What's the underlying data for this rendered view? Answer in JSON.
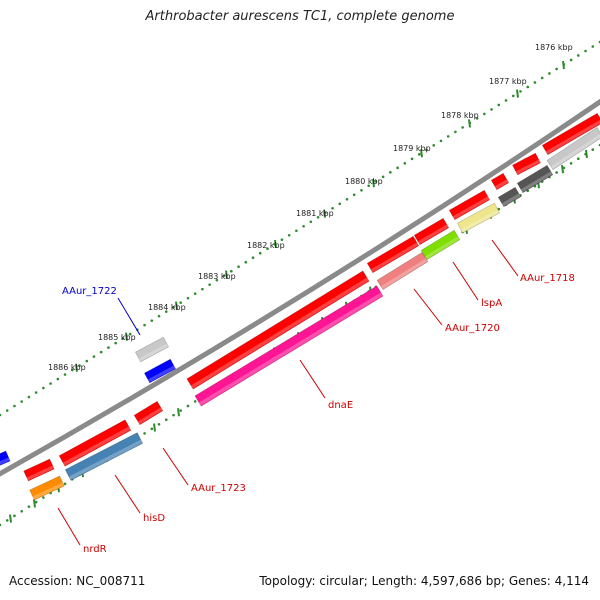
{
  "title": "Arthrobacter aurescens TC1, complete genome",
  "footer": {
    "accession": "Accession: NC_008711",
    "summary": "Topology: circular; Length: 4,597,686 bp; Genes: 4,114"
  },
  "colors": {
    "backbone": "#8a8a8a",
    "tick_dots": "#2e8b2e",
    "label_red": "#cc0000",
    "label_blue": "#0000cc",
    "red": "#ff0000",
    "blue": "#0000ff",
    "gray_light": "#c8c8c8",
    "gray_dark": "#555555",
    "pink": "#ff1493",
    "salmon": "#f08080",
    "lime": "#7fdd00",
    "khaki": "#eee58c",
    "steelblue": "#4682b4",
    "orange": "#ff8c00"
  },
  "scale_labels": [
    "1876 kbp",
    "1877 kbp",
    "1878 kbp",
    "1879 kbp",
    "1880 kbp",
    "1881 kbp",
    "1882 kbp",
    "1883 kbp",
    "1884 kbp",
    "1885 kbp",
    "1886 kbp"
  ],
  "gene_labels": [
    {
      "text": "AAur_1718",
      "color": "red"
    },
    {
      "text": "lspA",
      "color": "red"
    },
    {
      "text": "AAur_1720",
      "color": "red"
    },
    {
      "text": "dnaE",
      "color": "red"
    },
    {
      "text": "AAur_1722",
      "color": "blue"
    },
    {
      "text": "AAur_1723",
      "color": "red"
    },
    {
      "text": "hisD",
      "color": "red"
    },
    {
      "text": "nrdR",
      "color": "red"
    }
  ]
}
